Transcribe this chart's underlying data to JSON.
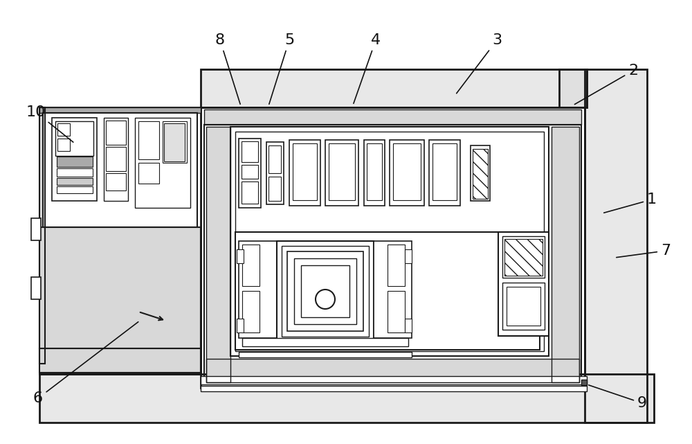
{
  "bg_color": "#ffffff",
  "lc": "#1a1a1a",
  "figsize": [
    10.0,
    6.41
  ],
  "dpi": 100,
  "labels": [
    [
      "10",
      52,
      162,
      108,
      207
    ],
    [
      "8",
      318,
      58,
      348,
      153
    ],
    [
      "5",
      418,
      58,
      388,
      153
    ],
    [
      "4",
      543,
      58,
      510,
      152
    ],
    [
      "3",
      718,
      58,
      658,
      137
    ],
    [
      "2",
      915,
      102,
      828,
      152
    ],
    [
      "1",
      942,
      288,
      870,
      308
    ],
    [
      "7",
      962,
      362,
      888,
      372
    ],
    [
      "9",
      928,
      582,
      848,
      555
    ],
    [
      "6",
      55,
      575,
      202,
      463
    ]
  ]
}
